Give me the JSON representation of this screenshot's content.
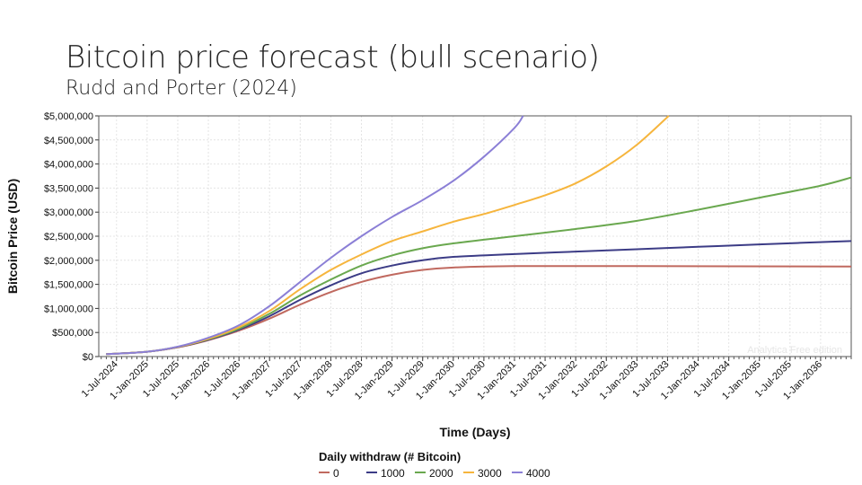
{
  "chart_data": {
    "type": "line",
    "title": "Bitcoin price forecast (bull scenario)",
    "subtitle": "Rudd and Porter (2024)",
    "xlabel": "Time (Days)",
    "ylabel": "Bitcoin Price (USD)",
    "ylim": [
      0,
      5000000
    ],
    "xlim_years": [
      2024.21,
      2036.5
    ],
    "yticks": [
      "$0",
      "$500,000",
      "$1,000,000",
      "$1,500,000",
      "$2,000,000",
      "$2,500,000",
      "$3,000,000",
      "$3,500,000",
      "$4,000,000",
      "$4,500,000",
      "$5,000,000"
    ],
    "xticks": [
      "1-Jul-2024",
      "1-Jan-2025",
      "1-Jul-2025",
      "1-Jan-2026",
      "1-Jul-2026",
      "1-Jan-2027",
      "1-Jul-2027",
      "1-Jan-2028",
      "1-Jul-2028",
      "1-Jan-2029",
      "1-Jul-2029",
      "1-Jan-2030",
      "1-Jul-2030",
      "1-Jan-2031",
      "1-Jul-2031",
      "1-Jan-2032",
      "1-Jul-2032",
      "1-Jan-2033",
      "1-Jul-2033",
      "1-Jan-2034",
      "1-Jul-2034",
      "1-Jan-2035",
      "1-Jul-2035",
      "1-Jan-2036"
    ],
    "grid": true,
    "legend_title": "Daily withdraw (# Bitcoin)",
    "legend_position": "bottom",
    "watermark": "Analytica Free edition",
    "series": [
      {
        "name": "0",
        "color": "#c0695f",
        "x": [
          2024.33,
          2025,
          2025.5,
          2026,
          2026.5,
          2027,
          2027.5,
          2028,
          2028.5,
          2029,
          2029.5,
          2030,
          2031,
          2033,
          2036.5
        ],
        "y": [
          50000,
          100000,
          190000,
          340000,
          540000,
          790000,
          1080000,
          1340000,
          1550000,
          1700000,
          1800000,
          1850000,
          1880000,
          1880000,
          1870000
        ]
      },
      {
        "name": "1000",
        "color": "#3c3c86",
        "x": [
          2024.33,
          2025,
          2025.5,
          2026,
          2026.5,
          2027,
          2027.5,
          2028,
          2028.5,
          2029,
          2029.5,
          2030,
          2031,
          2032,
          2033,
          2034,
          2035,
          2036.5
        ],
        "y": [
          50000,
          100000,
          195000,
          350000,
          560000,
          840000,
          1180000,
          1480000,
          1730000,
          1890000,
          2000000,
          2070000,
          2130000,
          2180000,
          2230000,
          2280000,
          2330000,
          2400000
        ]
      },
      {
        "name": "2000",
        "color": "#6aa84f",
        "x": [
          2024.33,
          2025,
          2025.5,
          2026,
          2026.5,
          2027,
          2027.5,
          2028,
          2028.5,
          2029,
          2029.5,
          2030,
          2031,
          2032,
          2033,
          2034,
          2035,
          2036,
          2036.5
        ],
        "y": [
          50000,
          100000,
          200000,
          360000,
          580000,
          890000,
          1270000,
          1600000,
          1890000,
          2100000,
          2250000,
          2350000,
          2500000,
          2650000,
          2820000,
          3050000,
          3300000,
          3550000,
          3720000
        ]
      },
      {
        "name": "3000",
        "color": "#f6b53d",
        "x": [
          2024.33,
          2025,
          2025.5,
          2026,
          2026.5,
          2027,
          2027.5,
          2028,
          2028.5,
          2029,
          2029.5,
          2030,
          2030.5,
          2031,
          2031.5,
          2032,
          2032.5,
          2033,
          2033.52
        ],
        "y": [
          50000,
          100000,
          200000,
          370000,
          610000,
          950000,
          1400000,
          1800000,
          2120000,
          2400000,
          2600000,
          2800000,
          2960000,
          3150000,
          3350000,
          3600000,
          3950000,
          4400000,
          5000000
        ]
      },
      {
        "name": "4000",
        "color": "#8b7fd6",
        "x": [
          2024.33,
          2025,
          2025.5,
          2026,
          2026.5,
          2027,
          2027.5,
          2028,
          2028.5,
          2029,
          2029.5,
          2030,
          2030.5,
          2031,
          2031.14
        ],
        "y": [
          50000,
          100000,
          205000,
          390000,
          650000,
          1050000,
          1550000,
          2050000,
          2500000,
          2900000,
          3250000,
          3650000,
          4150000,
          4750000,
          5000000
        ]
      }
    ]
  }
}
